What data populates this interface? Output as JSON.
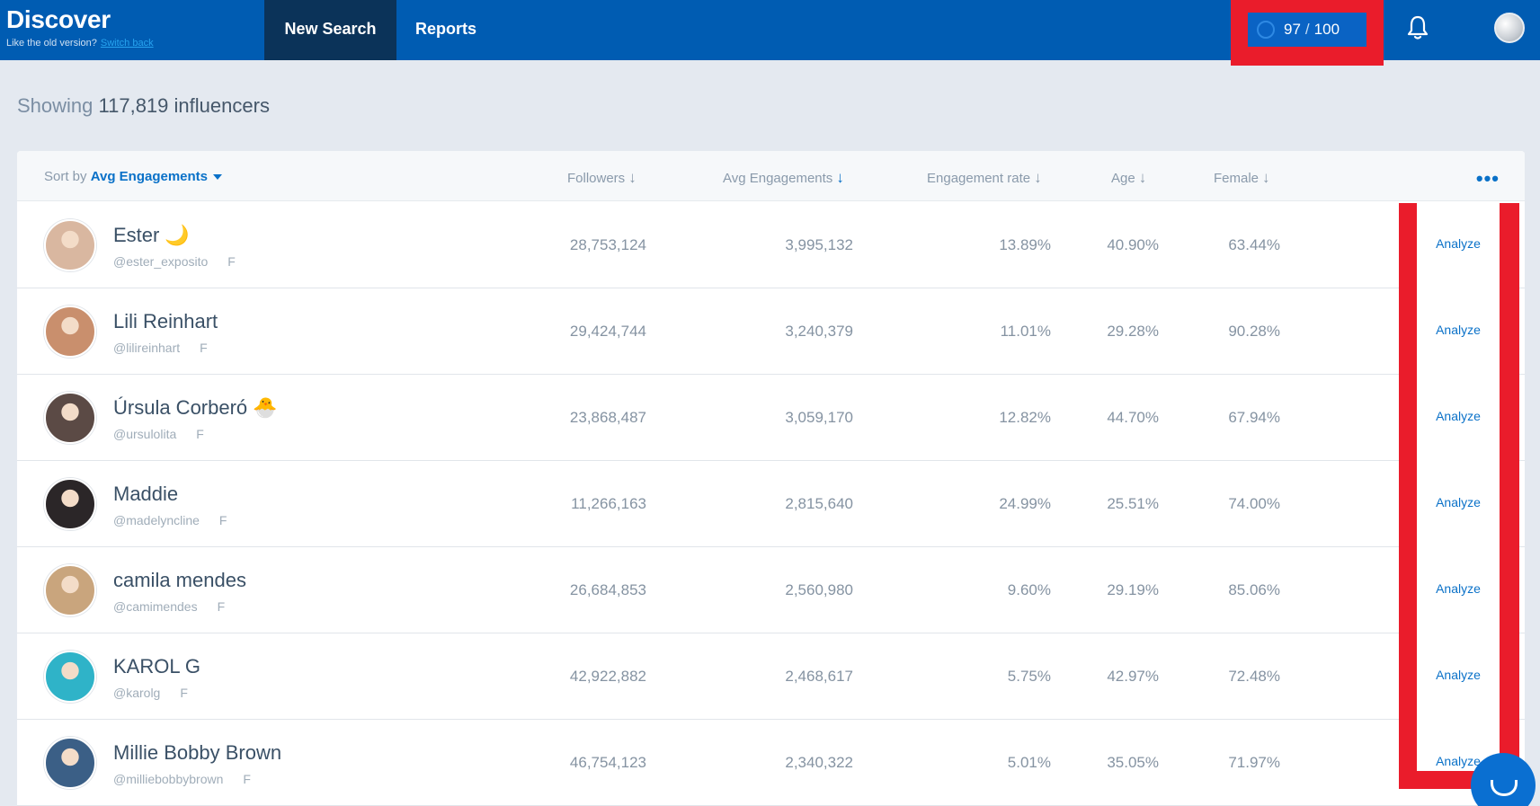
{
  "topbar": {
    "brand": "Discover",
    "subtitle": "Like the old version?",
    "switch_link": "Switch back",
    "tabs": [
      {
        "label": "New Search"
      },
      {
        "label": "Reports"
      }
    ],
    "credits": {
      "used": "97",
      "total": "100"
    }
  },
  "summary": {
    "prefix": "Showing",
    "count": "117,819",
    "suffix": "influencers"
  },
  "table": {
    "sort_label": "Sort by",
    "sort_value": "Avg Engagements",
    "columns": [
      "Followers",
      "Avg Engagements",
      "Engagement rate",
      "Age",
      "Female"
    ],
    "action_label": "Analyze",
    "rows": [
      {
        "name": "Ester",
        "emoji": "🌙",
        "handle": "@ester_exposito",
        "gender": "F",
        "followers": "28,753,124",
        "avg": "3,995,132",
        "er": "13.89%",
        "age": "40.90%",
        "female": "63.44%",
        "avatar": "#d9b7a0"
      },
      {
        "name": "Lili Reinhart",
        "emoji": "",
        "handle": "@lilireinhart",
        "gender": "F",
        "followers": "29,424,744",
        "avg": "3,240,379",
        "er": "11.01%",
        "age": "29.28%",
        "female": "90.28%",
        "avatar": "#c98f6d"
      },
      {
        "name": "Úrsula Corberó",
        "emoji": "🐣",
        "handle": "@ursulolita",
        "gender": "F",
        "followers": "23,868,487",
        "avg": "3,059,170",
        "er": "12.82%",
        "age": "44.70%",
        "female": "67.94%",
        "avatar": "#5b4a45"
      },
      {
        "name": "Maddie",
        "emoji": "",
        "handle": "@madelyncline",
        "gender": "F",
        "followers": "11,266,163",
        "avg": "2,815,640",
        "er": "24.99%",
        "age": "25.51%",
        "female": "74.00%",
        "avatar": "#2b2628"
      },
      {
        "name": "camila mendes",
        "emoji": "",
        "handle": "@camimendes",
        "gender": "F",
        "followers": "26,684,853",
        "avg": "2,560,980",
        "er": "9.60%",
        "age": "29.19%",
        "female": "85.06%",
        "avatar": "#c9a57d"
      },
      {
        "name": "KAROL G",
        "emoji": "",
        "handle": "@karolg",
        "gender": "F",
        "followers": "42,922,882",
        "avg": "2,468,617",
        "er": "5.75%",
        "age": "42.97%",
        "female": "72.48%",
        "avatar": "#2fb3c8"
      },
      {
        "name": "Millie Bobby Brown",
        "emoji": "",
        "handle": "@milliebobbybrown",
        "gender": "F",
        "followers": "46,754,123",
        "avg": "2,340,322",
        "er": "5.01%",
        "age": "35.05%",
        "female": "71.97%",
        "avatar": "#3b5f86"
      }
    ]
  },
  "colors": {
    "brand": "#005cb2",
    "accent": "#0a71c8",
    "highlight": "#ea1c2b"
  },
  "icons": [
    "credits-ring-icon",
    "bell-icon",
    "sort-arrow-icon",
    "more-icon",
    "chat-icon"
  ]
}
